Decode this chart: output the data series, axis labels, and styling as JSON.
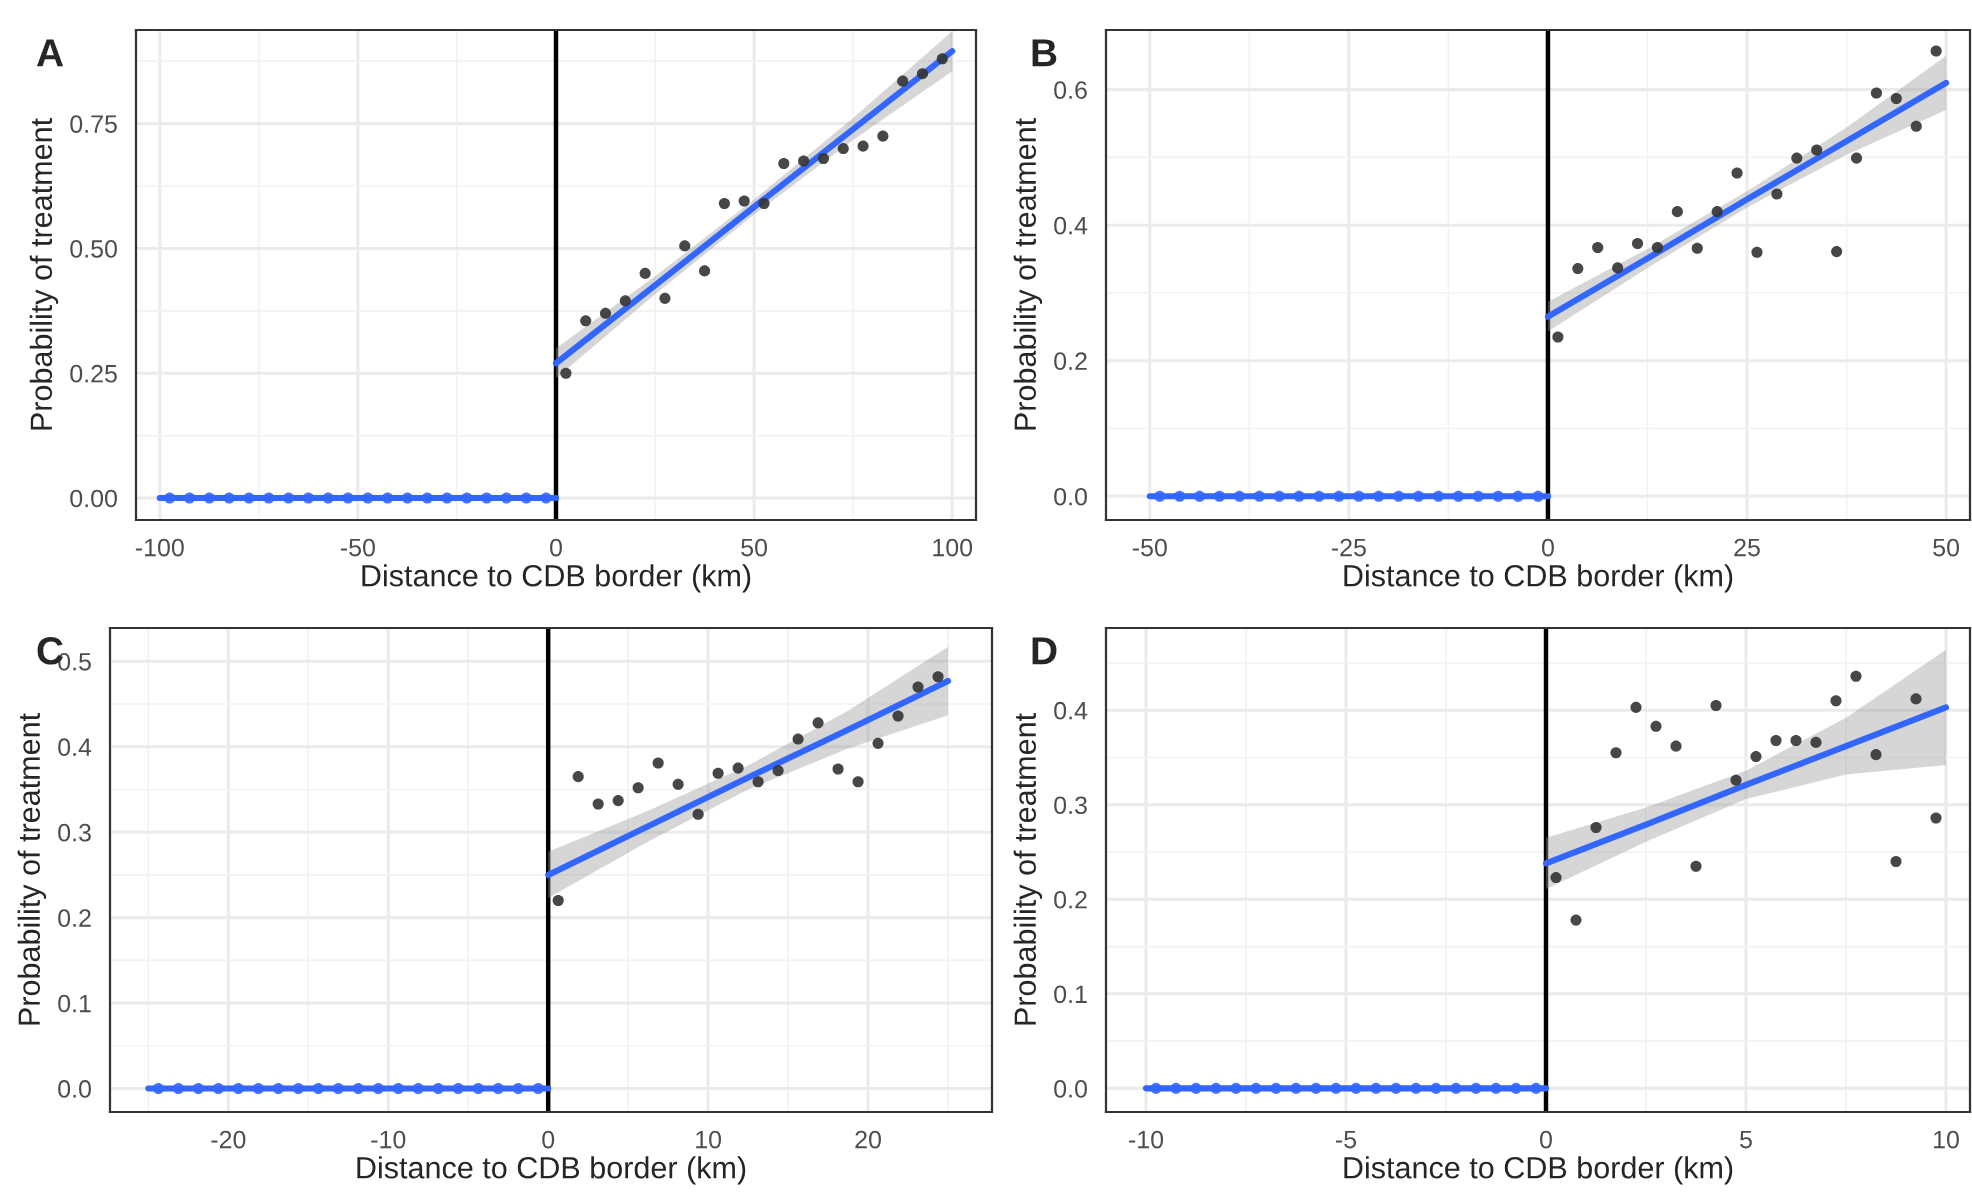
{
  "chart_data": [
    {
      "type": "scatter",
      "title": "A",
      "xlabel": "Distance to CDB border (km)",
      "ylabel": "Probability of treatment",
      "xlim": [
        -106,
        106
      ],
      "ylim": [
        -0.044,
        0.9375
      ],
      "xticks": [
        -100,
        -50,
        0,
        50,
        100
      ],
      "yticks": [
        {
          "value": 0,
          "label": "0.00"
        },
        {
          "value": 0.25,
          "label": "0.25"
        },
        {
          "value": 0.5,
          "label": "0.50"
        },
        {
          "value": 0.75,
          "label": "0.75"
        }
      ],
      "grid": true,
      "legend": false,
      "marker": "circle",
      "ref_lines": [
        {
          "axis": "x",
          "value": 0,
          "color": "#000000"
        }
      ],
      "series": [
        {
          "color": "#3366ff",
          "x": [
            -97.5,
            -92.5,
            -87.5,
            -82.5,
            -77.5,
            -72.5,
            -67.5,
            -62.5,
            -57.5,
            -52.5,
            -47.5,
            -42.5,
            -37.5,
            -32.5,
            -27.5,
            -22.5,
            -17.5,
            -12.5,
            -7.5,
            -2.5
          ],
          "values": [
            0,
            0,
            0,
            0,
            0,
            0,
            0,
            0,
            0,
            0,
            0,
            0,
            0,
            0,
            0,
            0,
            0,
            0,
            0,
            0
          ]
        },
        {
          "type": "line",
          "marker": "none",
          "color": "#3366ff",
          "x": [
            -100,
            0
          ],
          "values": [
            0,
            0
          ]
        },
        {
          "type": "line",
          "marker": "none",
          "color": "#3366ff",
          "x": [
            0,
            25,
            50,
            75,
            100
          ],
          "values": [
            0.27,
            0.426,
            0.583,
            0.739,
            0.895
          ],
          "lower": [
            0.24,
            0.408,
            0.568,
            0.717,
            0.855
          ],
          "upper": [
            0.3,
            0.444,
            0.598,
            0.761,
            0.935
          ]
        },
        {
          "color": "#333333",
          "x": [
            2.5,
            7.5,
            12.5,
            17.5,
            22.5,
            27.5,
            32.5,
            37.5,
            42.5,
            47.5,
            52.5,
            57.5,
            62.5,
            67.5,
            72.5,
            77.5,
            82.5,
            87.5,
            92.5,
            97.5
          ],
          "values": [
            0.25,
            0.355,
            0.37,
            0.395,
            0.45,
            0.4,
            0.505,
            0.455,
            0.59,
            0.595,
            0.59,
            0.67,
            0.675,
            0.68,
            0.7,
            0.705,
            0.725,
            0.835,
            0.85,
            0.88
          ]
        }
      ]
    },
    {
      "type": "scatter",
      "title": "B",
      "xlabel": "Distance to CDB border (km)",
      "ylabel": "Probability of treatment",
      "xlim": [
        -55.5,
        53
      ],
      "ylim": [
        -0.035,
        0.688
      ],
      "xticks": [
        -50,
        -25,
        0,
        25,
        50
      ],
      "yticks": [
        {
          "value": 0,
          "label": "0.0"
        },
        {
          "value": 0.2,
          "label": "0.2"
        },
        {
          "value": 0.4,
          "label": "0.4"
        },
        {
          "value": 0.6,
          "label": "0.6"
        }
      ],
      "grid": true,
      "legend": false,
      "marker": "circle",
      "ref_lines": [
        {
          "axis": "x",
          "value": 0,
          "color": "#000000"
        }
      ],
      "series": [
        {
          "color": "#3366ff",
          "x": [
            -48.75,
            -46.25,
            -43.75,
            -41.25,
            -38.75,
            -36.25,
            -33.75,
            -31.25,
            -28.75,
            -26.25,
            -23.75,
            -21.25,
            -18.75,
            -16.25,
            -13.75,
            -11.25,
            -8.75,
            -6.25,
            -3.75,
            -1.25
          ],
          "values": [
            0,
            0,
            0,
            0,
            0,
            0,
            0,
            0,
            0,
            0,
            0,
            0,
            0,
            0,
            0,
            0,
            0,
            0,
            0,
            0
          ]
        },
        {
          "type": "line",
          "marker": "none",
          "color": "#3366ff",
          "x": [
            -50,
            0
          ],
          "values": [
            0,
            0
          ]
        },
        {
          "type": "line",
          "marker": "none",
          "color": "#3366ff",
          "x": [
            0,
            12.5,
            25,
            37.5,
            50
          ],
          "values": [
            0.265,
            0.351,
            0.438,
            0.524,
            0.61
          ],
          "lower": [
            0.243,
            0.337,
            0.426,
            0.504,
            0.57
          ],
          "upper": [
            0.287,
            0.365,
            0.45,
            0.544,
            0.65
          ]
        },
        {
          "color": "#333333",
          "x": [
            1.25,
            3.75,
            6.25,
            8.75,
            11.25,
            13.75,
            16.25,
            18.75,
            21.25,
            23.75,
            26.25,
            28.75,
            31.25,
            33.75,
            36.25,
            38.75,
            41.25,
            43.75,
            46.25,
            48.75
          ],
          "values": [
            0.235,
            0.336,
            0.367,
            0.337,
            0.373,
            0.367,
            0.42,
            0.366,
            0.42,
            0.477,
            0.36,
            0.446,
            0.499,
            0.511,
            0.361,
            0.499,
            0.595,
            0.587,
            0.546,
            0.657
          ]
        }
      ]
    },
    {
      "type": "scatter",
      "title": "C",
      "xlabel": "Distance to CDB border (km)",
      "ylabel": "Probability of treatment",
      "xlim": [
        -27.4,
        27.75
      ],
      "ylim": [
        -0.0275,
        0.539
      ],
      "xticks": [
        -20,
        -10,
        0,
        10,
        20
      ],
      "yticks": [
        {
          "value": 0,
          "label": "0.0"
        },
        {
          "value": 0.1,
          "label": "0.1"
        },
        {
          "value": 0.2,
          "label": "0.2"
        },
        {
          "value": 0.3,
          "label": "0.3"
        },
        {
          "value": 0.4,
          "label": "0.4"
        },
        {
          "value": 0.5,
          "label": "0.5"
        }
      ],
      "grid": true,
      "legend": false,
      "marker": "circle",
      "ref_lines": [
        {
          "axis": "x",
          "value": 0,
          "color": "#000000"
        }
      ],
      "series": [
        {
          "color": "#3366ff",
          "x": [
            -24.375,
            -23.125,
            -21.875,
            -20.625,
            -19.375,
            -18.125,
            -16.875,
            -15.625,
            -14.375,
            -13.125,
            -11.875,
            -10.625,
            -9.375,
            -8.125,
            -6.875,
            -5.625,
            -4.375,
            -3.125,
            -1.875,
            -0.625
          ],
          "values": [
            0,
            0,
            0,
            0,
            0,
            0,
            0,
            0,
            0,
            0,
            0,
            0,
            0,
            0,
            0,
            0,
            0,
            0,
            0,
            0
          ]
        },
        {
          "type": "line",
          "marker": "none",
          "color": "#3366ff",
          "x": [
            -25,
            0
          ],
          "values": [
            0,
            0
          ]
        },
        {
          "type": "line",
          "marker": "none",
          "color": "#3366ff",
          "x": [
            0,
            6.25,
            12.5,
            18.75,
            25
          ],
          "values": [
            0.25,
            0.307,
            0.364,
            0.42,
            0.477
          ],
          "lower": [
            0.223,
            0.289,
            0.35,
            0.398,
            0.437
          ],
          "upper": [
            0.277,
            0.325,
            0.378,
            0.442,
            0.517
          ]
        },
        {
          "color": "#333333",
          "x": [
            0.625,
            1.875,
            3.125,
            4.375,
            5.625,
            6.875,
            8.125,
            9.375,
            10.625,
            11.875,
            13.125,
            14.375,
            15.625,
            16.875,
            18.125,
            19.375,
            20.625,
            21.875,
            23.125,
            24.375
          ],
          "values": [
            0.22,
            0.365,
            0.333,
            0.337,
            0.352,
            0.381,
            0.356,
            0.321,
            0.369,
            0.375,
            0.359,
            0.372,
            0.409,
            0.428,
            0.374,
            0.359,
            0.404,
            0.436,
            0.47,
            0.482
          ]
        }
      ]
    },
    {
      "type": "scatter",
      "title": "D",
      "xlabel": "Distance to CDB border (km)",
      "ylabel": "Probability of treatment",
      "xlim": [
        -11,
        10.6
      ],
      "ylim": [
        -0.025,
        0.487
      ],
      "xticks": [
        -10,
        -5,
        0,
        5,
        10
      ],
      "yticks": [
        {
          "value": 0,
          "label": "0.0"
        },
        {
          "value": 0.1,
          "label": "0.1"
        },
        {
          "value": 0.2,
          "label": "0.2"
        },
        {
          "value": 0.3,
          "label": "0.3"
        },
        {
          "value": 0.4,
          "label": "0.4"
        }
      ],
      "grid": true,
      "legend": false,
      "marker": "circle",
      "ref_lines": [
        {
          "axis": "x",
          "value": 0,
          "color": "#000000"
        }
      ],
      "series": [
        {
          "color": "#3366ff",
          "x": [
            -9.75,
            -9.25,
            -8.75,
            -8.25,
            -7.75,
            -7.25,
            -6.75,
            -6.25,
            -5.75,
            -5.25,
            -4.75,
            -4.25,
            -3.75,
            -3.25,
            -2.75,
            -2.25,
            -1.75,
            -1.25,
            -0.75,
            -0.25
          ],
          "values": [
            0,
            0,
            0,
            0,
            0,
            0,
            0,
            0,
            0,
            0,
            0,
            0,
            0,
            0,
            0,
            0,
            0,
            0,
            0,
            0
          ]
        },
        {
          "type": "line",
          "marker": "none",
          "color": "#3366ff",
          "x": [
            -10,
            0
          ],
          "values": [
            0,
            0
          ]
        },
        {
          "type": "line",
          "marker": "none",
          "color": "#3366ff",
          "x": [
            0,
            2.5,
            5,
            7.5,
            10
          ],
          "values": [
            0.238,
            0.279,
            0.321,
            0.362,
            0.403
          ],
          "lower": [
            0.211,
            0.261,
            0.306,
            0.332,
            0.342
          ],
          "upper": [
            0.265,
            0.297,
            0.336,
            0.392,
            0.464
          ]
        },
        {
          "color": "#333333",
          "x": [
            0.25,
            0.75,
            1.25,
            1.75,
            2.25,
            2.75,
            3.25,
            3.75,
            4.25,
            4.75,
            5.25,
            5.75,
            6.25,
            6.75,
            7.25,
            7.75,
            8.25,
            8.75,
            9.25,
            9.75
          ],
          "values": [
            0.223,
            0.178,
            0.276,
            0.355,
            0.403,
            0.383,
            0.362,
            0.235,
            0.405,
            0.326,
            0.351,
            0.368,
            0.368,
            0.366,
            0.41,
            0.436,
            0.353,
            0.24,
            0.412,
            0.286
          ]
        }
      ]
    }
  ]
}
